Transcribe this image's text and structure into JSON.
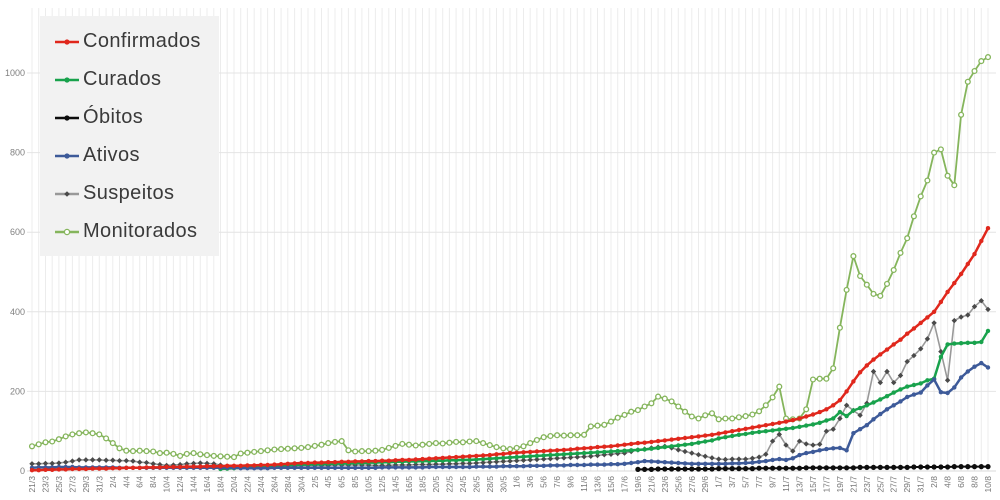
{
  "chart_data": {
    "type": "line",
    "title": "",
    "grid": true,
    "legend_position": "top-left",
    "legend_background": "#f2f2f2",
    "legend_text_color": "#3a3a3a",
    "y_axis": {
      "min": 0,
      "max": 1000,
      "ticks": [
        0,
        200,
        400,
        600,
        800,
        1000
      ]
    },
    "x_axis": {
      "label_every": 2,
      "label_rotation": -90
    },
    "dates": [
      "21/3",
      "22/3",
      "23/3",
      "24/3",
      "25/3",
      "26/3",
      "27/3",
      "28/3",
      "29/3",
      "30/3",
      "31/3",
      "1/4",
      "2/4",
      "3/4",
      "4/4",
      "5/4",
      "6/4",
      "7/4",
      "8/4",
      "9/4",
      "10/4",
      "11/4",
      "12/4",
      "13/4",
      "14/4",
      "15/4",
      "16/4",
      "17/4",
      "18/4",
      "19/4",
      "20/4",
      "21/4",
      "22/4",
      "23/4",
      "24/4",
      "25/4",
      "26/4",
      "27/4",
      "28/4",
      "29/4",
      "30/4",
      "1/5",
      "2/5",
      "3/5",
      "4/5",
      "5/5",
      "6/5",
      "7/5",
      "8/5",
      "9/5",
      "10/5",
      "11/5",
      "12/5",
      "13/5",
      "14/5",
      "15/5",
      "16/5",
      "17/5",
      "18/5",
      "19/5",
      "20/5",
      "21/5",
      "22/5",
      "23/5",
      "24/5",
      "25/5",
      "26/5",
      "27/5",
      "28/5",
      "29/5",
      "30/5",
      "31/5",
      "1/6",
      "2/6",
      "3/6",
      "4/6",
      "5/6",
      "6/6",
      "7/6",
      "8/6",
      "9/6",
      "10/6",
      "11/6",
      "12/6",
      "13/6",
      "14/6",
      "15/6",
      "16/6",
      "17/6",
      "18/6",
      "19/6",
      "20/6",
      "21/6",
      "22/6",
      "23/6",
      "24/6",
      "25/6",
      "26/6",
      "27/6",
      "28/6",
      "29/6",
      "30/6",
      "1/7",
      "2/7",
      "3/7",
      "4/7",
      "5/7",
      "6/7",
      "7/7",
      "8/7",
      "9/7",
      "10/7",
      "11/7",
      "12/7",
      "13/7",
      "14/7",
      "15/7",
      "16/7",
      "17/7",
      "18/7",
      "19/7",
      "20/7",
      "21/7",
      "22/7",
      "23/7",
      "24/7",
      "25/7",
      "26/7",
      "27/7",
      "28/7",
      "29/7",
      "30/7",
      "31/7",
      "1/8",
      "2/8",
      "3/8",
      "4/8",
      "5/8",
      "6/8",
      "7/8",
      "8/8",
      "9/8",
      "10/8"
    ],
    "series": [
      {
        "name": "Confirmados",
        "color": "#e0271c",
        "marker": "circle",
        "line_width": 2.5,
        "values": [
          2,
          2,
          3,
          3,
          4,
          4,
          5,
          5,
          5,
          6,
          6,
          6,
          7,
          7,
          8,
          8,
          8,
          9,
          9,
          9,
          10,
          10,
          10,
          11,
          11,
          11,
          12,
          12,
          12,
          13,
          13,
          13,
          14,
          14,
          15,
          15,
          16,
          17,
          18,
          19,
          20,
          20,
          21,
          21,
          22,
          22,
          23,
          23,
          24,
          24,
          25,
          25,
          26,
          26,
          27,
          28,
          28,
          29,
          30,
          31,
          32,
          33,
          34,
          35,
          36,
          37,
          38,
          39,
          40,
          42,
          43,
          45,
          46,
          47,
          48,
          49,
          50,
          51,
          52,
          53,
          54,
          56,
          57,
          58,
          60,
          61,
          62,
          64,
          66,
          68,
          70,
          71,
          73,
          75,
          77,
          79,
          81,
          83,
          85,
          87,
          89,
          91,
          94,
          97,
          100,
          103,
          106,
          109,
          112,
          115,
          118,
          121,
          124,
          128,
          132,
          137,
          142,
          148,
          155,
          165,
          178,
          200,
          225,
          248,
          265,
          280,
          293,
          305,
          318,
          330,
          345,
          358,
          372,
          386,
          400,
          425,
          450,
          472,
          495,
          520,
          545,
          578,
          610
        ]
      },
      {
        "name": "Curados",
        "color": "#18a24c",
        "marker": "circle",
        "line_width": 2.5,
        "values": [
          null,
          null,
          null,
          null,
          null,
          null,
          null,
          null,
          null,
          null,
          null,
          null,
          null,
          null,
          null,
          null,
          null,
          null,
          null,
          null,
          null,
          null,
          null,
          null,
          null,
          null,
          null,
          null,
          5,
          6,
          7,
          8,
          9,
          10,
          11,
          12,
          13,
          14,
          15,
          15,
          16,
          16,
          17,
          17,
          18,
          18,
          19,
          19,
          20,
          20,
          21,
          21,
          22,
          22,
          23,
          23,
          24,
          24,
          25,
          25,
          26,
          26,
          27,
          27,
          28,
          28,
          29,
          30,
          31,
          32,
          33,
          34,
          35,
          36,
          37,
          38,
          39,
          40,
          41,
          42,
          43,
          44,
          45,
          46,
          47,
          48,
          49,
          50,
          51,
          52,
          53,
          54,
          56,
          58,
          60,
          62,
          64,
          66,
          68,
          71,
          74,
          77,
          82,
          85,
          88,
          91,
          93,
          96,
          98,
          100,
          102,
          104,
          106,
          108,
          111,
          114,
          117,
          121,
          127,
          132,
          148,
          138,
          152,
          158,
          165,
          172,
          180,
          188,
          197,
          205,
          212,
          216,
          220,
          228,
          232,
          287,
          318,
          320,
          321,
          322,
          322,
          324,
          352
        ]
      },
      {
        "name": "Óbitos",
        "color": "#0d0d0d",
        "marker": "circle",
        "line_width": 2,
        "values": [
          null,
          null,
          null,
          null,
          null,
          null,
          null,
          null,
          null,
          null,
          null,
          null,
          null,
          null,
          null,
          null,
          null,
          null,
          null,
          null,
          null,
          null,
          null,
          null,
          null,
          null,
          null,
          null,
          null,
          null,
          null,
          null,
          null,
          null,
          null,
          null,
          null,
          null,
          null,
          null,
          null,
          null,
          null,
          null,
          null,
          null,
          null,
          null,
          null,
          null,
          null,
          null,
          null,
          null,
          null,
          null,
          null,
          null,
          null,
          null,
          null,
          null,
          null,
          null,
          null,
          null,
          null,
          null,
          null,
          null,
          null,
          null,
          null,
          null,
          null,
          null,
          null,
          null,
          null,
          null,
          null,
          null,
          null,
          null,
          null,
          null,
          null,
          null,
          null,
          null,
          4,
          4,
          4,
          5,
          5,
          5,
          5,
          5,
          5,
          5,
          5,
          5,
          6,
          6,
          6,
          6,
          6,
          6,
          7,
          7,
          7,
          7,
          7,
          7,
          7,
          8,
          8,
          8,
          8,
          8,
          8,
          8,
          8,
          9,
          9,
          9,
          9,
          9,
          9,
          9,
          9,
          10,
          10,
          10,
          10,
          10,
          10,
          11,
          11,
          11,
          11,
          11,
          11
        ]
      },
      {
        "name": "Ativos",
        "color": "#3d5a99",
        "marker": "circle",
        "line_width": 2.5,
        "values": [
          8,
          9,
          9,
          9,
          10,
          10,
          10,
          9,
          9,
          9,
          9,
          9,
          9,
          8,
          8,
          8,
          8,
          8,
          8,
          8,
          8,
          8,
          8,
          8,
          8,
          8,
          8,
          8,
          8,
          8,
          8,
          7,
          7,
          7,
          7,
          7,
          8,
          8,
          8,
          8,
          8,
          8,
          8,
          8,
          8,
          8,
          8,
          8,
          8,
          8,
          8,
          8,
          9,
          9,
          9,
          9,
          9,
          9,
          9,
          10,
          10,
          10,
          10,
          10,
          10,
          10,
          11,
          11,
          11,
          11,
          12,
          12,
          12,
          12,
          13,
          13,
          13,
          14,
          14,
          14,
          15,
          15,
          15,
          16,
          16,
          16,
          17,
          17,
          18,
          20,
          22,
          25,
          24,
          23,
          22,
          21,
          20,
          19,
          18,
          18,
          18,
          18,
          18,
          18,
          19,
          19,
          20,
          21,
          23,
          25,
          28,
          30,
          28,
          32,
          40,
          45,
          48,
          52,
          55,
          57,
          58,
          52,
          95,
          105,
          115,
          130,
          143,
          155,
          165,
          175,
          186,
          192,
          197,
          215,
          230,
          198,
          196,
          210,
          235,
          250,
          262,
          271,
          260
        ]
      },
      {
        "name": "Suspeitos",
        "color": "#999999",
        "marker": "diamond",
        "marker_color": "#4a4a4a",
        "line_width": 1.6,
        "values": [
          18,
          18,
          19,
          19,
          20,
          22,
          25,
          28,
          28,
          28,
          28,
          27,
          27,
          26,
          26,
          25,
          22,
          21,
          18,
          16,
          14,
          15,
          16,
          18,
          19,
          20,
          19,
          18,
          15,
          12,
          10,
          10,
          11,
          11,
          12,
          12,
          12,
          13,
          13,
          13,
          14,
          14,
          14,
          14,
          14,
          15,
          15,
          15,
          15,
          15,
          15,
          14,
          14,
          14,
          15,
          15,
          15,
          16,
          16,
          16,
          17,
          17,
          18,
          18,
          19,
          19,
          20,
          21,
          22,
          23,
          24,
          25,
          26,
          27,
          28,
          29,
          30,
          31,
          32,
          33,
          34,
          35,
          36,
          37,
          39,
          41,
          42,
          44,
          45,
          49,
          53,
          55,
          58,
          60,
          62,
          58,
          53,
          49,
          45,
          41,
          37,
          33,
          30,
          29,
          30,
          30,
          30,
          32,
          35,
          42,
          75,
          92,
          65,
          50,
          75,
          68,
          65,
          67,
          100,
          105,
          132,
          165,
          152,
          140,
          170,
          250,
          222,
          250,
          222,
          240,
          275,
          290,
          307,
          332,
          372,
          300,
          228,
          378,
          387,
          392,
          413,
          428,
          406
        ]
      },
      {
        "name": "Monitorados",
        "color": "#85b55c",
        "marker": "circle-open",
        "line_width": 1.8,
        "values": [
          62,
          67,
          72,
          74,
          80,
          87,
          92,
          95,
          97,
          95,
          92,
          82,
          70,
          57,
          51,
          50,
          51,
          50,
          49,
          45,
          46,
          43,
          38,
          43,
          45,
          42,
          40,
          38,
          37,
          36,
          35,
          44,
          46,
          48,
          50,
          52,
          54,
          55,
          56,
          57,
          58,
          60,
          63,
          66,
          70,
          73,
          75,
          52,
          49,
          50,
          50,
          51,
          53,
          58,
          63,
          68,
          66,
          64,
          66,
          68,
          70,
          69,
          71,
          73,
          72,
          74,
          75,
          70,
          65,
          60,
          57,
          55,
          58,
          62,
          70,
          78,
          85,
          88,
          90,
          89,
          90,
          90,
          91,
          112,
          114,
          116,
          124,
          134,
          141,
          149,
          153,
          162,
          170,
          187,
          182,
          175,
          162,
          149,
          137,
          132,
          140,
          145,
          130,
          132,
          132,
          135,
          138,
          142,
          150,
          165,
          185,
          212,
          132,
          130,
          132,
          155,
          230,
          232,
          232,
          258,
          360,
          455,
          540,
          490,
          468,
          445,
          440,
          470,
          505,
          548,
          585,
          640,
          690,
          730,
          800,
          808,
          742,
          718,
          895,
          978,
          1005,
          1030,
          1040
        ]
      }
    ]
  }
}
